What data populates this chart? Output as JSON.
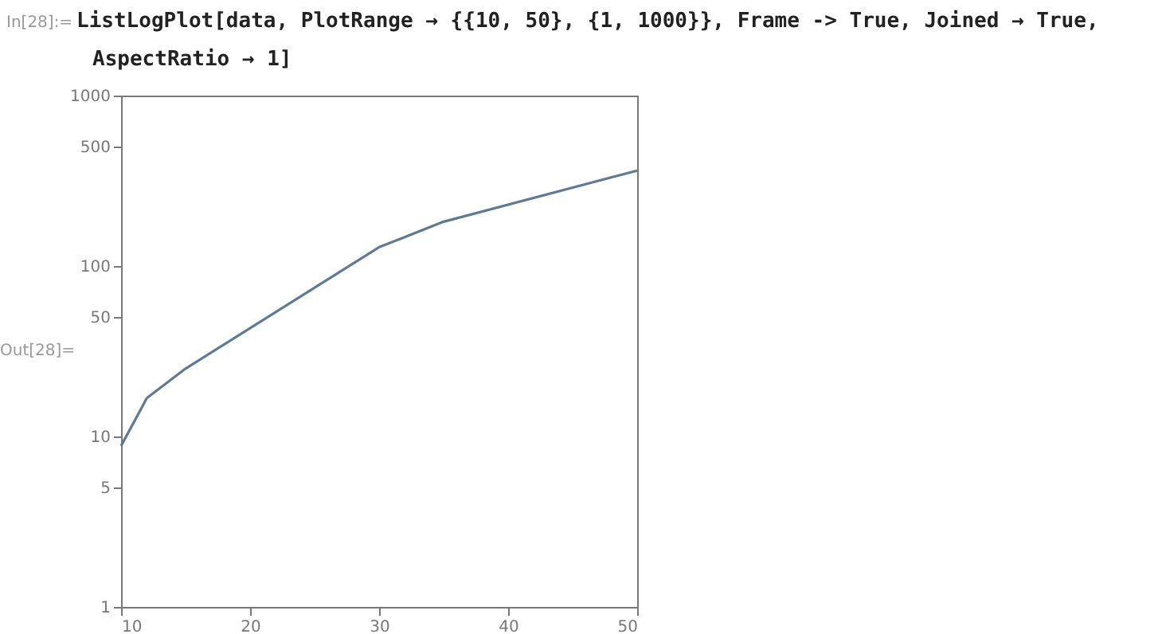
{
  "chart_data": {
    "type": "line",
    "annotations": [
      "In[28]:=",
      "ListLogPlot[data, PlotRange → {{10, 50}, {1, 1000}}, Frame -> True, Joined → True,",
      "AspectRatio → 1]",
      "Out[28]="
    ],
    "x": [
      10,
      12,
      15,
      30,
      35,
      50
    ],
    "series": [
      {
        "color": "#5f7a95",
        "values": [
          8.8,
          16.8,
          25,
          129,
          182,
          363
        ]
      }
    ],
    "xlim": [
      10,
      50
    ],
    "xticks": [
      10,
      20,
      30,
      40,
      50
    ],
    "ylim": [
      1,
      1000
    ],
    "yticks": [
      1,
      5,
      10,
      50,
      100,
      500,
      1000
    ],
    "log": "y",
    "grid": false,
    "marker": "none",
    "line_style": "solid"
  }
}
